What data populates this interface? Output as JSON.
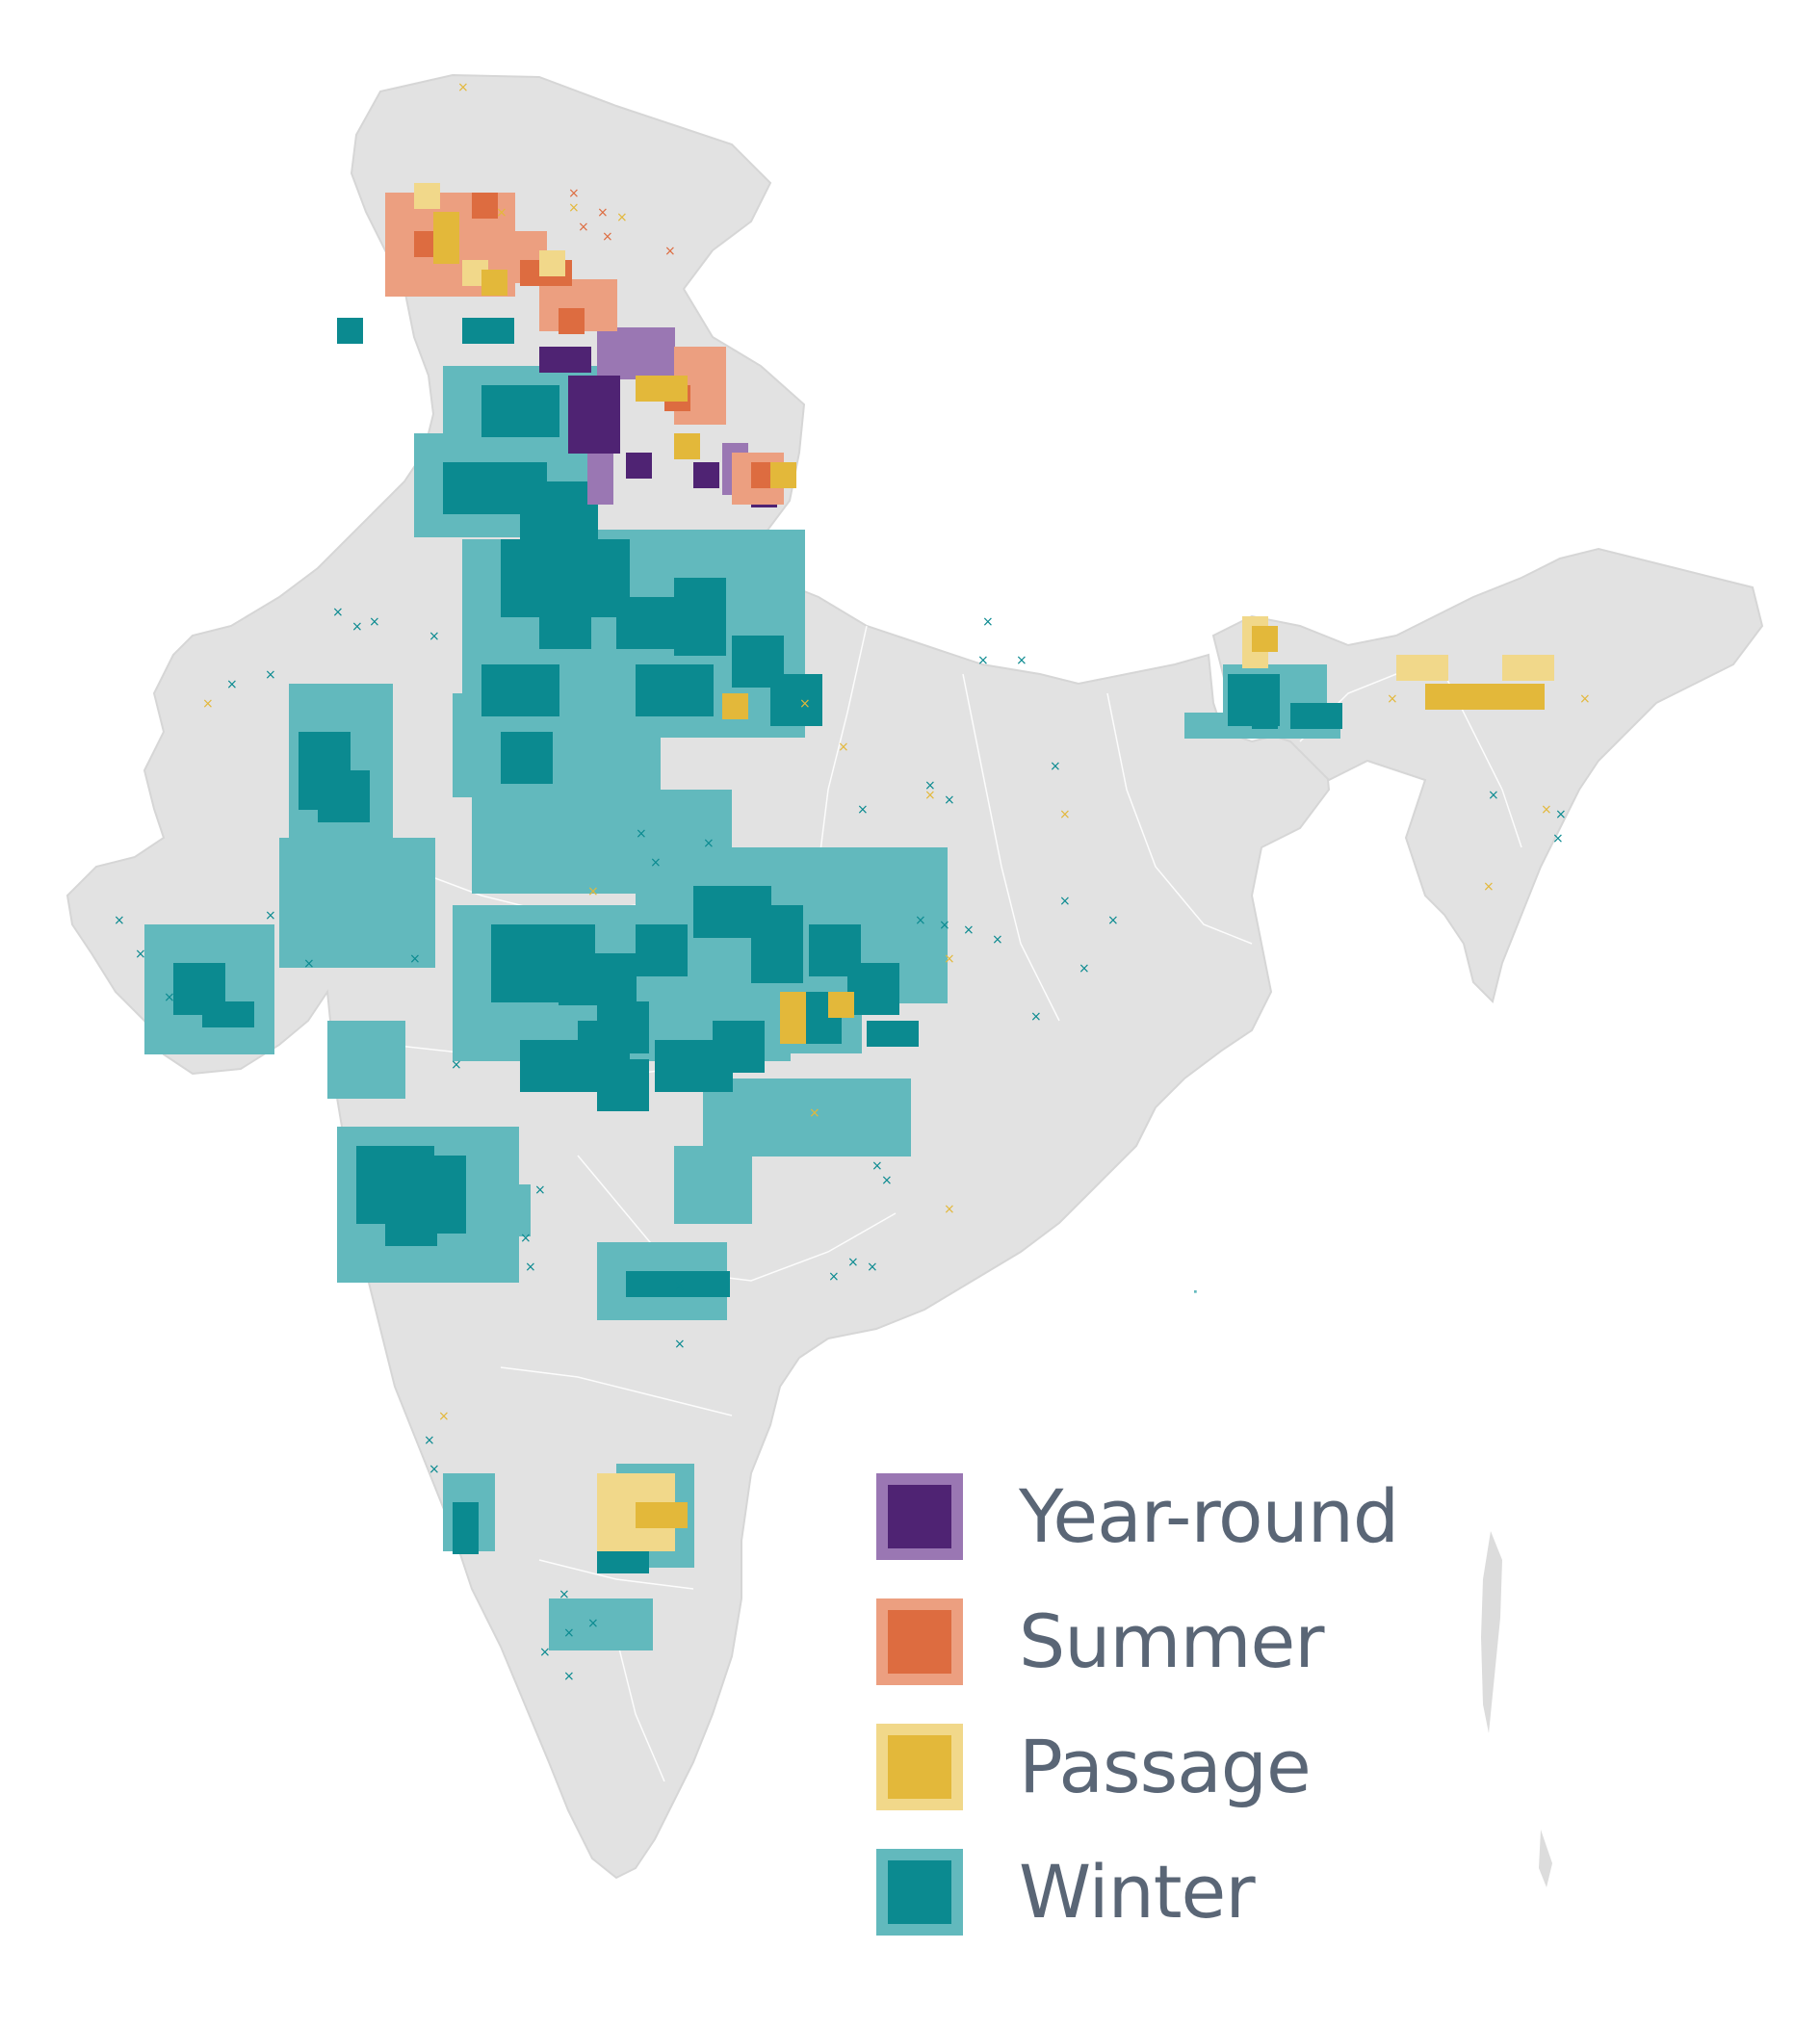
{
  "legend": {
    "items": [
      {
        "key": "year-round",
        "label": "Year-round",
        "fill": "#4f2373",
        "border": "#9a77b3"
      },
      {
        "key": "summer",
        "label": "Summer",
        "fill": "#dd6c40",
        "border": "#ec9f80"
      },
      {
        "key": "passage",
        "label": "Passage",
        "fill": "#e3b83a",
        "border": "#f1d88a"
      },
      {
        "key": "winter",
        "label": "Winter",
        "fill": "#0b8a90",
        "border": "#62b9bd"
      }
    ]
  },
  "colors": {
    "land": "#e2e2e2",
    "land_shade": "#cfcfcf",
    "borders": "#ffffff",
    "legend_text": "#5a6676"
  }
}
